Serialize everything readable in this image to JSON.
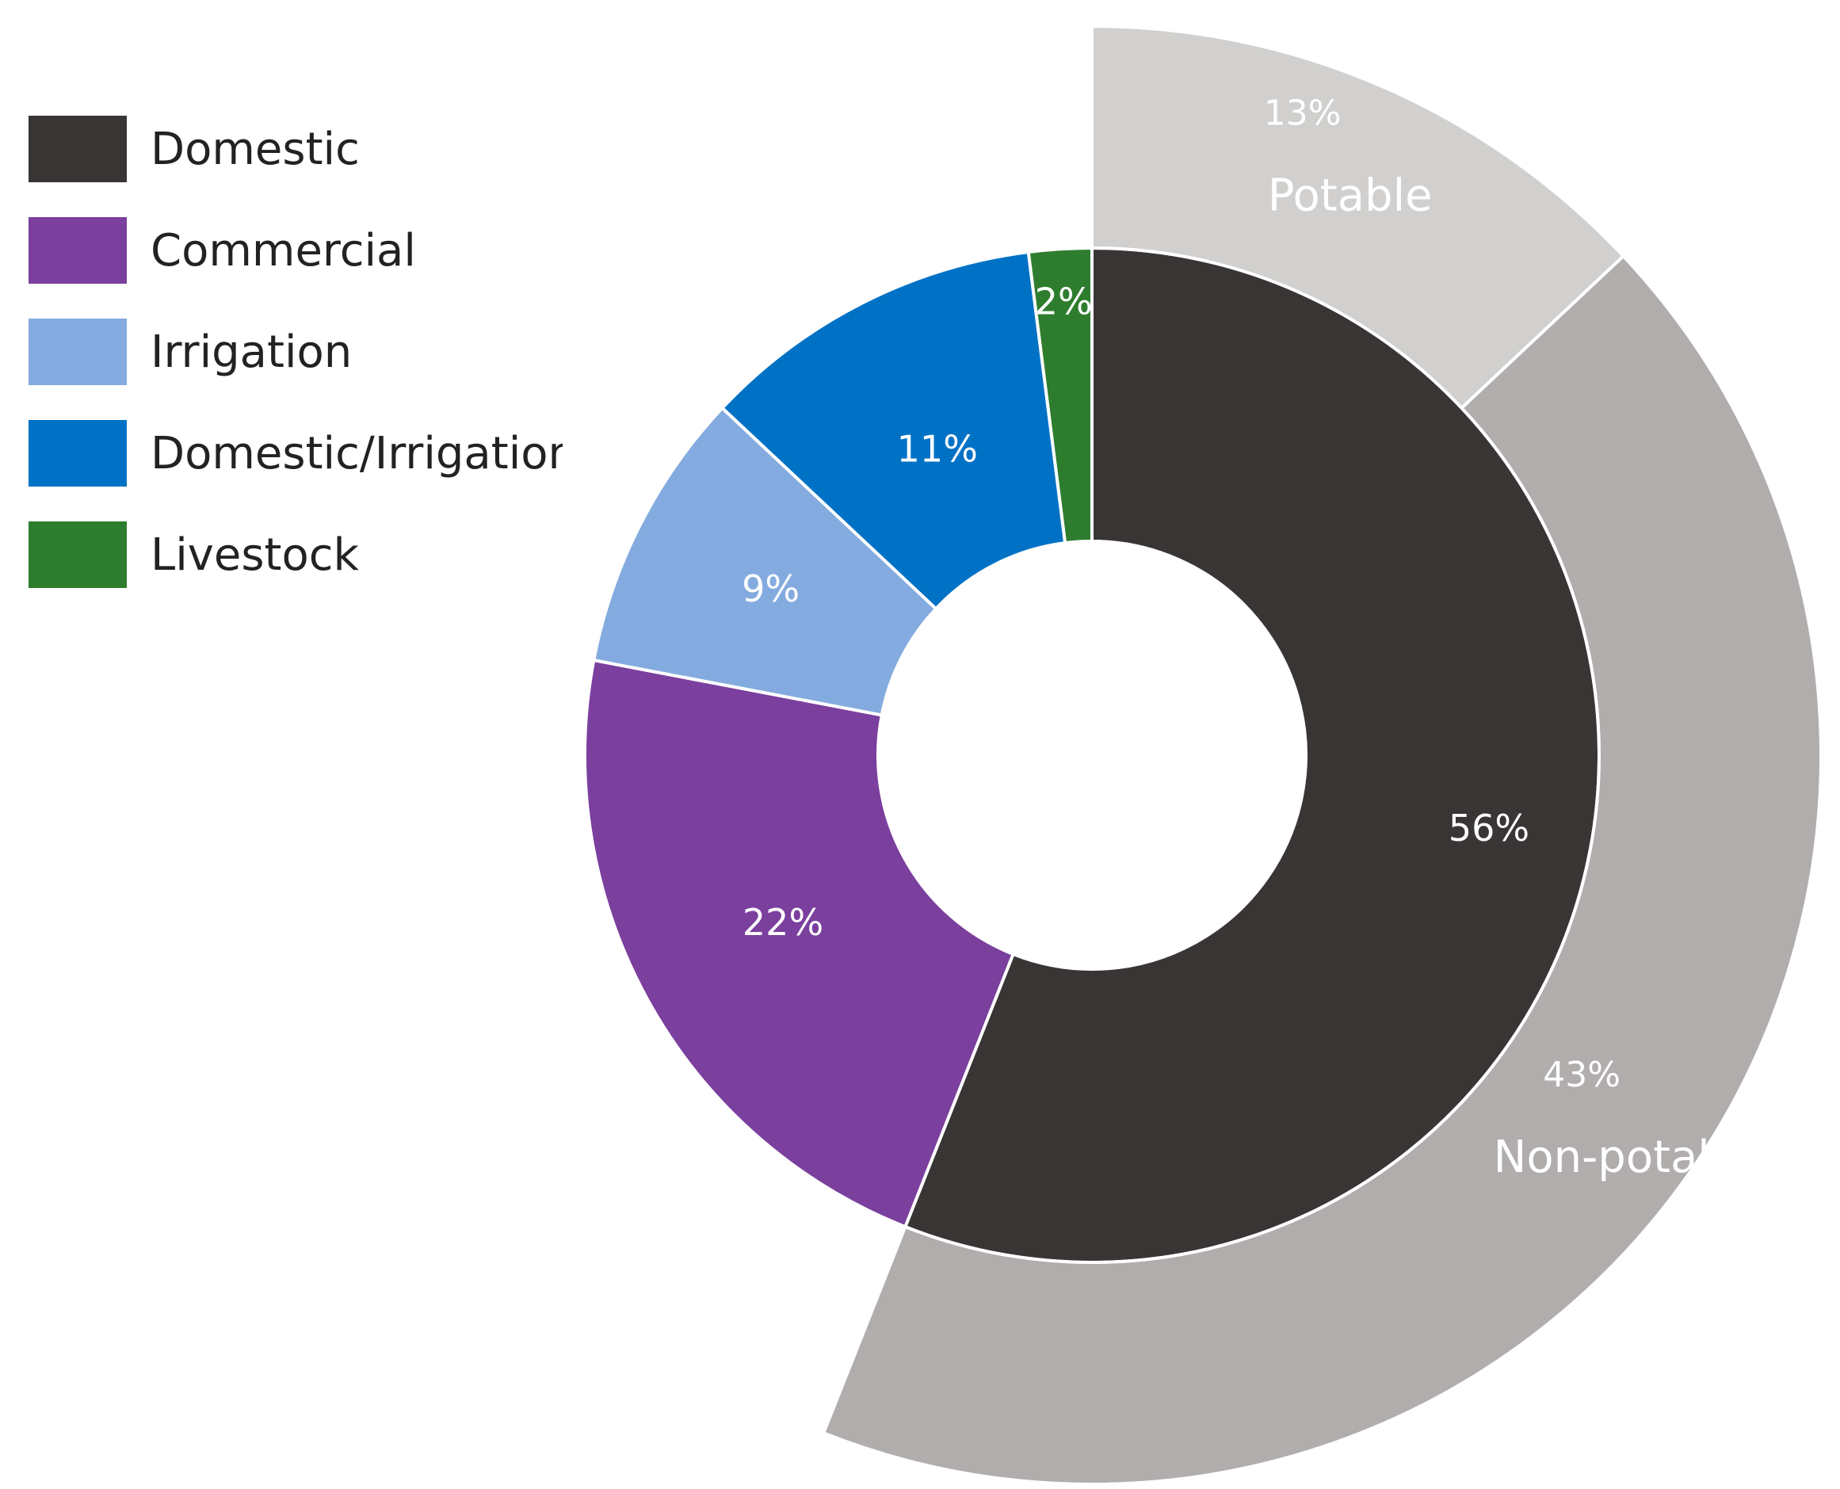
{
  "chart_data": {
    "type": "pie",
    "style": "nested-donut",
    "legend": {
      "placement": "top-left",
      "entries": [
        {
          "label": "Domestic",
          "color": "#393534"
        },
        {
          "label": "Commercial",
          "color": "#7b3f9e"
        },
        {
          "label": "Irrigation",
          "color": "#84abdf"
        },
        {
          "label": "Domestic/Irrigation",
          "color": "#0072c6"
        },
        {
          "label": "Livestock",
          "color": "#2e7d2e"
        }
      ]
    },
    "inner_ring": {
      "slices": [
        {
          "category": "Domestic",
          "value": 56,
          "label": "56%",
          "color": "#393534"
        },
        {
          "category": "Commercial",
          "value": 22,
          "label": "22%",
          "color": "#7b3f9e"
        },
        {
          "category": "Irrigation",
          "value": 9,
          "label": "9%",
          "color": "#84abdf"
        },
        {
          "category": "Domestic/Irrigation",
          "value": 11,
          "label": "11%",
          "color": "#0072c6"
        },
        {
          "category": "Livestock",
          "value": 2,
          "label": "2%",
          "color": "#2e7d2e"
        }
      ]
    },
    "outer_ring": {
      "slices": [
        {
          "name": "Potable",
          "value": 13,
          "label": "13%",
          "color": "#d1d0ce"
        },
        {
          "name": "Non-potable",
          "value": 43,
          "label": "43%",
          "color": "#b0adac"
        }
      ]
    }
  }
}
